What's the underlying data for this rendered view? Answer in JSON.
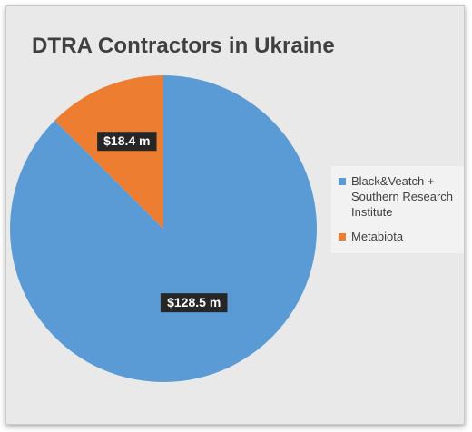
{
  "chart_data": {
    "type": "pie",
    "title": "DTRA Contractors in Ukraine",
    "slices": [
      {
        "name": "Black&Veatch + Southern Research Institute",
        "value": 128.5,
        "label": "$128.5 m",
        "color": "#5b9bd5"
      },
      {
        "name": "Metabiota",
        "value": 18.4,
        "label": "$18.4 m",
        "color": "#ed7d31"
      }
    ],
    "legend_position": "right",
    "data_label_style": {
      "background": "#262626",
      "color": "#ffffff"
    }
  }
}
